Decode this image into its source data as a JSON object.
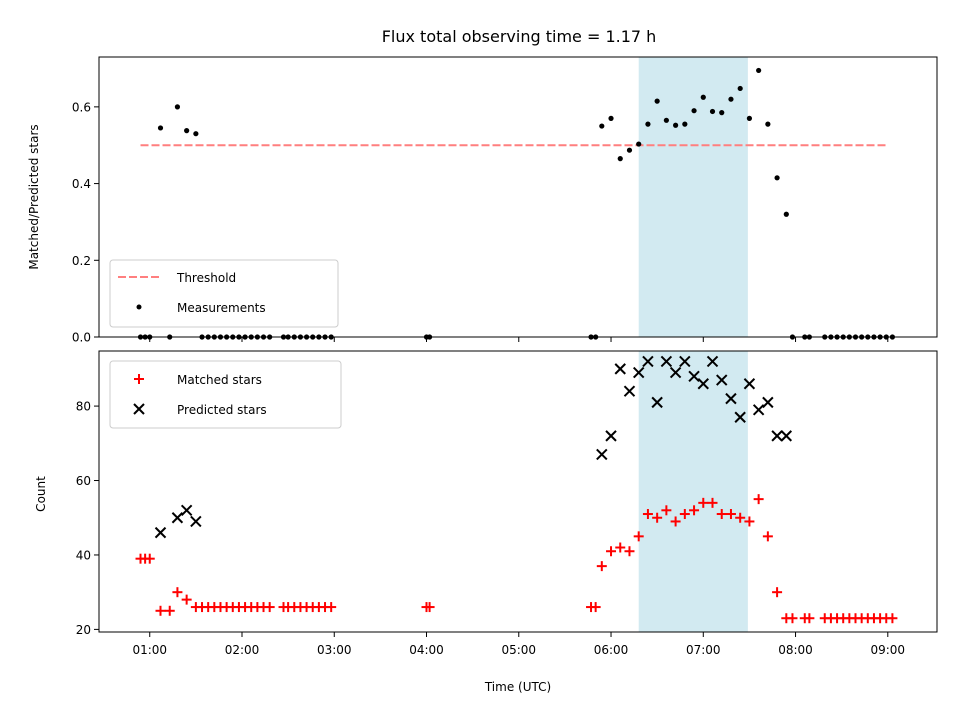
{
  "title": "Flux total observing time = 1.17 h",
  "colors": {
    "threshold": "#ff7f7f",
    "measurement": "#000000",
    "matched": "#ff0000",
    "predicted": "#000000",
    "shade": "#add8e6"
  },
  "chart_data": [
    {
      "type": "scatter",
      "position": "top",
      "title": "Flux total observing time = 1.17 h",
      "xlabel": "",
      "ylabel": "Matched/Predicted stars",
      "xlim": [
        "00:27",
        "09:32"
      ],
      "ylim": [
        0,
        0.73
      ],
      "yticks": [
        0.0,
        0.2,
        0.4,
        0.6
      ],
      "ytick_labels": [
        "0.0",
        "0.2",
        "0.4",
        "0.6"
      ],
      "xticks": [
        "01:00",
        "02:00",
        "03:00",
        "04:00",
        "05:00",
        "06:00",
        "07:00",
        "08:00",
        "09:00"
      ],
      "shaded_span": [
        "06:18",
        "07:29"
      ],
      "legend_position": "lower-left",
      "legend": [
        "Threshold",
        "Measurements"
      ],
      "threshold": {
        "name": "Threshold",
        "y": 0.5,
        "x_range": [
          "00:54",
          "09:00"
        ]
      },
      "series": [
        {
          "name": "Measurements",
          "points": [
            [
              "00:54",
              0
            ],
            [
              "00:57",
              0
            ],
            [
              "01:00",
              0
            ],
            [
              "01:07",
              0.545
            ],
            [
              "01:13",
              0
            ],
            [
              "01:18",
              0.6
            ],
            [
              "01:24",
              0.538
            ],
            [
              "01:30",
              0.53
            ],
            [
              "01:34",
              0
            ],
            [
              "01:38",
              0
            ],
            [
              "01:42",
              0
            ],
            [
              "01:46",
              0
            ],
            [
              "01:50",
              0
            ],
            [
              "01:54",
              0
            ],
            [
              "01:58",
              0
            ],
            [
              "02:02",
              0
            ],
            [
              "02:06",
              0
            ],
            [
              "02:10",
              0
            ],
            [
              "02:14",
              0
            ],
            [
              "02:18",
              0
            ],
            [
              "02:27",
              0
            ],
            [
              "02:30",
              0
            ],
            [
              "02:34",
              0
            ],
            [
              "02:38",
              0
            ],
            [
              "02:42",
              0
            ],
            [
              "02:46",
              0
            ],
            [
              "02:50",
              0
            ],
            [
              "02:54",
              0
            ],
            [
              "02:58",
              0
            ],
            [
              "04:00",
              0
            ],
            [
              "04:02",
              0
            ],
            [
              "05:47",
              0
            ],
            [
              "05:50",
              0
            ],
            [
              "05:54",
              0.55
            ],
            [
              "06:00",
              0.57
            ],
            [
              "06:06",
              0.465
            ],
            [
              "06:12",
              0.487
            ],
            [
              "06:18",
              0.503
            ],
            [
              "06:24",
              0.555
            ],
            [
              "06:30",
              0.615
            ],
            [
              "06:36",
              0.565
            ],
            [
              "06:42",
              0.552
            ],
            [
              "06:48",
              0.555
            ],
            [
              "06:54",
              0.59
            ],
            [
              "07:00",
              0.625
            ],
            [
              "07:06",
              0.588
            ],
            [
              "07:12",
              0.585
            ],
            [
              "07:18",
              0.62
            ],
            [
              "07:24",
              0.648
            ],
            [
              "07:30",
              0.57
            ],
            [
              "07:36",
              0.695
            ],
            [
              "07:42",
              0.555
            ],
            [
              "07:48",
              0.415
            ],
            [
              "07:54",
              0.32
            ],
            [
              "07:58",
              0
            ],
            [
              "08:06",
              0
            ],
            [
              "08:09",
              0
            ],
            [
              "08:19",
              0
            ],
            [
              "08:23",
              0
            ],
            [
              "08:27",
              0
            ],
            [
              "08:31",
              0
            ],
            [
              "08:35",
              0
            ],
            [
              "08:39",
              0
            ],
            [
              "08:43",
              0
            ],
            [
              "08:47",
              0
            ],
            [
              "08:51",
              0
            ],
            [
              "08:55",
              0
            ],
            [
              "08:59",
              0
            ],
            [
              "09:03",
              0
            ]
          ]
        }
      ]
    },
    {
      "type": "scatter",
      "position": "bottom",
      "xlabel": "Time (UTC)",
      "ylabel": "Count",
      "xlim": [
        "00:27",
        "09:32"
      ],
      "ylim": [
        19.3,
        94.8
      ],
      "yticks": [
        20,
        40,
        60,
        80
      ],
      "ytick_labels": [
        "20",
        "40",
        "60",
        "80"
      ],
      "xticks": [
        "01:00",
        "02:00",
        "03:00",
        "04:00",
        "05:00",
        "06:00",
        "07:00",
        "08:00",
        "09:00"
      ],
      "xtick_labels": [
        "01:00",
        "02:00",
        "03:00",
        "04:00",
        "05:00",
        "06:00",
        "07:00",
        "08:00",
        "09:00"
      ],
      "shaded_span": [
        "06:18",
        "07:29"
      ],
      "legend_position": "upper-left",
      "legend": [
        "Matched stars",
        "Predicted stars"
      ],
      "series": [
        {
          "name": "Matched stars",
          "marker": "plus",
          "points": [
            [
              "00:54",
              39
            ],
            [
              "00:57",
              39
            ],
            [
              "01:00",
              39
            ],
            [
              "01:07",
              25
            ],
            [
              "01:13",
              25
            ],
            [
              "01:18",
              30
            ],
            [
              "01:24",
              28
            ],
            [
              "01:30",
              26
            ],
            [
              "01:34",
              26
            ],
            [
              "01:38",
              26
            ],
            [
              "01:42",
              26
            ],
            [
              "01:46",
              26
            ],
            [
              "01:50",
              26
            ],
            [
              "01:54",
              26
            ],
            [
              "01:58",
              26
            ],
            [
              "02:02",
              26
            ],
            [
              "02:06",
              26
            ],
            [
              "02:10",
              26
            ],
            [
              "02:14",
              26
            ],
            [
              "02:18",
              26
            ],
            [
              "02:27",
              26
            ],
            [
              "02:30",
              26
            ],
            [
              "02:34",
              26
            ],
            [
              "02:38",
              26
            ],
            [
              "02:42",
              26
            ],
            [
              "02:46",
              26
            ],
            [
              "02:50",
              26
            ],
            [
              "02:54",
              26
            ],
            [
              "02:58",
              26
            ],
            [
              "04:00",
              26
            ],
            [
              "04:02",
              26
            ],
            [
              "05:47",
              26
            ],
            [
              "05:50",
              26
            ],
            [
              "05:54",
              37
            ],
            [
              "06:00",
              41
            ],
            [
              "06:06",
              42
            ],
            [
              "06:12",
              41
            ],
            [
              "06:18",
              45
            ],
            [
              "06:24",
              51
            ],
            [
              "06:30",
              50
            ],
            [
              "06:36",
              52
            ],
            [
              "06:42",
              49
            ],
            [
              "06:48",
              51
            ],
            [
              "06:54",
              52
            ],
            [
              "07:00",
              54
            ],
            [
              "07:06",
              54
            ],
            [
              "07:12",
              51
            ],
            [
              "07:18",
              51
            ],
            [
              "07:24",
              50
            ],
            [
              "07:30",
              49
            ],
            [
              "07:36",
              55
            ],
            [
              "07:42",
              45
            ],
            [
              "07:48",
              30
            ],
            [
              "07:54",
              23
            ],
            [
              "07:58",
              23
            ],
            [
              "08:06",
              23
            ],
            [
              "08:09",
              23
            ],
            [
              "08:19",
              23
            ],
            [
              "08:23",
              23
            ],
            [
              "08:27",
              23
            ],
            [
              "08:31",
              23
            ],
            [
              "08:35",
              23
            ],
            [
              "08:39",
              23
            ],
            [
              "08:43",
              23
            ],
            [
              "08:47",
              23
            ],
            [
              "08:51",
              23
            ],
            [
              "08:55",
              23
            ],
            [
              "08:59",
              23
            ],
            [
              "09:03",
              23
            ]
          ]
        },
        {
          "name": "Predicted stars",
          "marker": "x",
          "points": [
            [
              "01:07",
              46
            ],
            [
              "01:18",
              50
            ],
            [
              "01:24",
              52
            ],
            [
              "01:30",
              49
            ],
            [
              "05:54",
              67
            ],
            [
              "06:00",
              72
            ],
            [
              "06:06",
              90
            ],
            [
              "06:12",
              84
            ],
            [
              "06:18",
              89
            ],
            [
              "06:24",
              92
            ],
            [
              "06:30",
              81
            ],
            [
              "06:36",
              92
            ],
            [
              "06:42",
              89
            ],
            [
              "06:48",
              92
            ],
            [
              "06:54",
              88
            ],
            [
              "07:00",
              86
            ],
            [
              "07:06",
              92
            ],
            [
              "07:12",
              87
            ],
            [
              "07:18",
              82
            ],
            [
              "07:24",
              77
            ],
            [
              "07:30",
              86
            ],
            [
              "07:36",
              79
            ],
            [
              "07:42",
              81
            ],
            [
              "07:48",
              72
            ],
            [
              "07:54",
              72
            ]
          ]
        }
      ]
    }
  ]
}
